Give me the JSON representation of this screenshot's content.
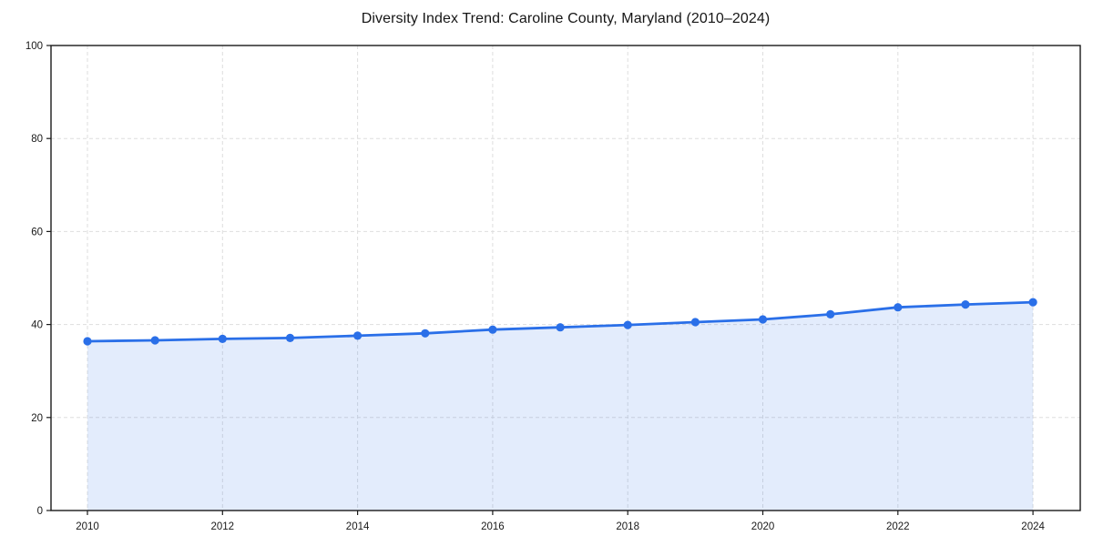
{
  "chart_data": {
    "type": "area",
    "title": "Diversity Index Trend: Caroline County, Maryland (2010–2024)",
    "xlabel": "",
    "ylabel": "",
    "x": [
      2010,
      2011,
      2012,
      2013,
      2014,
      2015,
      2016,
      2017,
      2018,
      2019,
      2020,
      2021,
      2022,
      2023,
      2024
    ],
    "values": [
      36.4,
      36.6,
      36.9,
      37.1,
      37.6,
      38.1,
      38.9,
      39.4,
      39.9,
      40.5,
      41.1,
      42.2,
      43.7,
      44.3,
      44.8
    ],
    "series_name": "Diversity Index",
    "xlim": [
      2009.46,
      2024.7
    ],
    "ylim": [
      0,
      100
    ],
    "xticks": [
      2010,
      2012,
      2014,
      2016,
      2018,
      2020,
      2022,
      2024
    ],
    "yticks": [
      0,
      20,
      40,
      60,
      80,
      100
    ],
    "grid": true,
    "grid_style": "dashed",
    "grid_color": "#dedede",
    "line_color": "#2a6fe8",
    "fill_opacity": 0.13,
    "marker": "circle",
    "legend": "none",
    "spine_color": "#1a1a1a"
  }
}
